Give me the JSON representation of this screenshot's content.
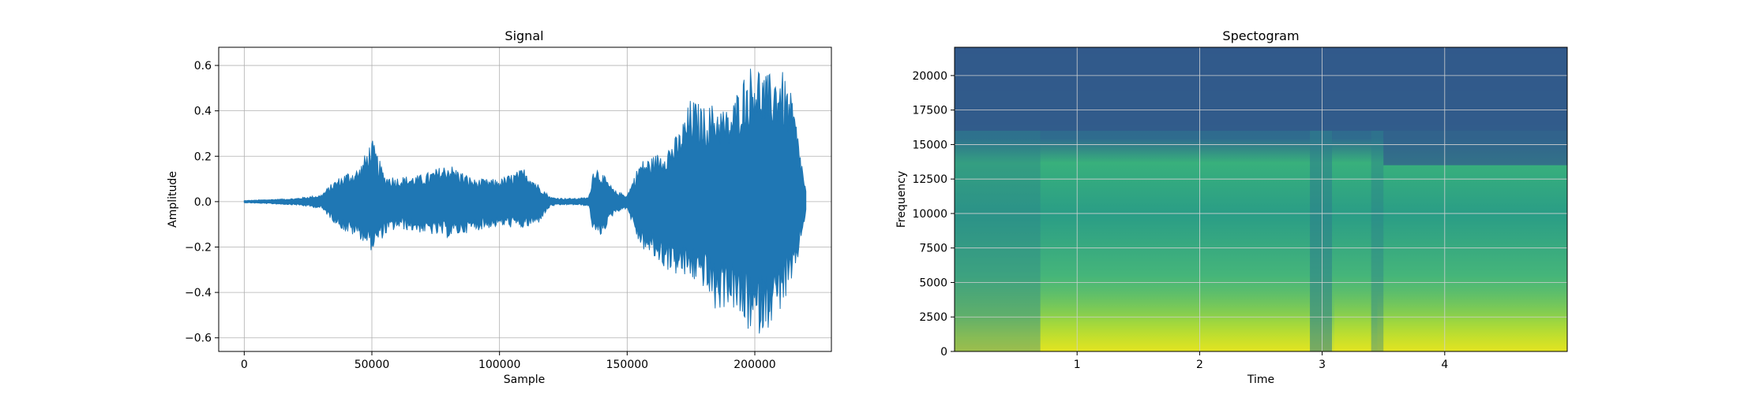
{
  "chart_data": [
    {
      "type": "line",
      "title": "Signal",
      "xlabel": "Sample",
      "ylabel": "Amplitude",
      "xlim": [
        -10000,
        230000
      ],
      "ylim": [
        -0.66,
        0.68
      ],
      "xticks": [
        0,
        50000,
        100000,
        150000,
        200000
      ],
      "xtick_labels": [
        "0",
        "50000",
        "100000",
        "150000",
        "200000"
      ],
      "yticks": [
        -0.6,
        -0.4,
        -0.2,
        0.0,
        0.2,
        0.4,
        0.6
      ],
      "ytick_labels": [
        "−0.6",
        "−0.4",
        "−0.2",
        "0.0",
        "0.2",
        "0.4",
        "0.6"
      ],
      "grid": true,
      "color": "#1f77b4",
      "series": [
        {
          "x": [
            0,
            10000,
            20000,
            30000,
            35000,
            40000,
            45000,
            50000,
            55000,
            60000,
            70000,
            80000,
            90000,
            100000,
            110000,
            115000,
            120000,
            125000,
            130000,
            135000,
            137000,
            140000,
            145000,
            150000,
            155000,
            160000,
            165000,
            170000,
            175000,
            180000,
            185000,
            190000,
            195000,
            200000,
            205000,
            210000,
            215000,
            220000
          ],
          "upper": [
            0.005,
            0.01,
            0.015,
            0.03,
            0.09,
            0.13,
            0.15,
            0.28,
            0.12,
            0.11,
            0.12,
            0.17,
            0.1,
            0.1,
            0.15,
            0.08,
            0.02,
            0.015,
            0.015,
            0.02,
            0.17,
            0.13,
            0.05,
            0.03,
            0.18,
            0.2,
            0.24,
            0.3,
            0.46,
            0.42,
            0.44,
            0.4,
            0.55,
            0.63,
            0.56,
            0.6,
            0.45,
            0.05
          ],
          "lower": [
            -0.005,
            -0.01,
            -0.015,
            -0.03,
            -0.09,
            -0.14,
            -0.16,
            -0.22,
            -0.15,
            -0.12,
            -0.14,
            -0.16,
            -0.13,
            -0.11,
            -0.12,
            -0.1,
            -0.02,
            -0.015,
            -0.015,
            -0.02,
            -0.16,
            -0.15,
            -0.05,
            -0.03,
            -0.2,
            -0.25,
            -0.3,
            -0.33,
            -0.35,
            -0.38,
            -0.5,
            -0.45,
            -0.55,
            -0.6,
            -0.56,
            -0.48,
            -0.38,
            -0.05
          ]
        }
      ]
    },
    {
      "type": "heatmap",
      "title": "Spectogram",
      "xlabel": "Time",
      "ylabel": "Frequency",
      "xlim": [
        0.0,
        5.0
      ],
      "ylim": [
        0,
        22050
      ],
      "xticks": [
        1,
        2,
        3,
        4
      ],
      "xtick_labels": [
        "1",
        "2",
        "3",
        "4"
      ],
      "yticks": [
        0,
        2500,
        5000,
        7500,
        10000,
        12500,
        15000,
        17500,
        20000
      ],
      "ytick_labels": [
        "0",
        "2500",
        "5000",
        "7500",
        "10000",
        "12500",
        "15000",
        "17500",
        "20000"
      ],
      "grid": true,
      "colormap": "viridis"
    }
  ]
}
